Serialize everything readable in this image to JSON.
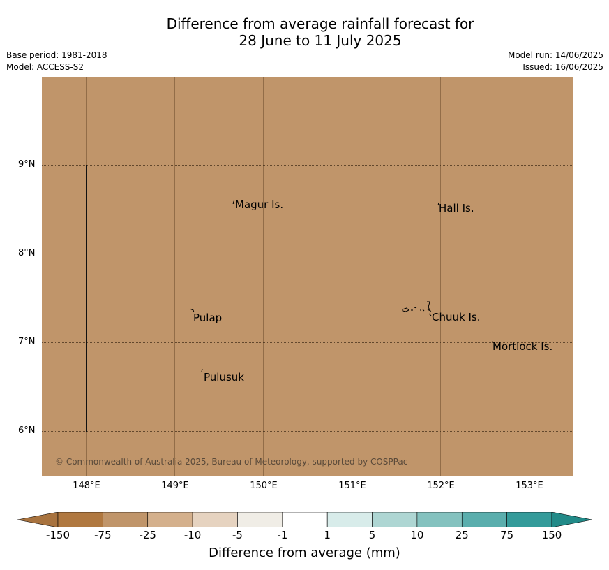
{
  "title_line1": "Difference from average rainfall forecast for",
  "title_line2": "28 June to 11 July 2025",
  "meta_left": {
    "base_period": "Base period: 1981-2018",
    "model": "Model: ACCESS-S2"
  },
  "meta_right": {
    "model_run": "Model run: 14/06/2025",
    "issued": "Issued: 16/06/2025"
  },
  "map": {
    "background_color": "#c0956a",
    "lat_labels": [
      "9°N",
      "8°N",
      "7°N",
      "6°N"
    ],
    "lon_labels": [
      "148°E",
      "149°E",
      "150°E",
      "151°E",
      "152°E",
      "153°E"
    ],
    "places": [
      "Magur Is.",
      "Hall Is.",
      "Pulap",
      "Chuuk Is.",
      "Mortlock Is.",
      "Pulusuk"
    ],
    "copyright": "© Commonwealth of Australia 2025, Bureau of Meteorology, supported by COSPPac"
  },
  "colorbar": {
    "labels": [
      "-150",
      "-75",
      "-25",
      "-10",
      "-5",
      "-1",
      "1",
      "5",
      "10",
      "25",
      "75",
      "150"
    ],
    "colors": [
      "#a8733f",
      "#b07840",
      "#c0956a",
      "#d4b08c",
      "#e6d3c0",
      "#f0ede6",
      "#ffffff",
      "#d8ecea",
      "#aed6d3",
      "#84c2bf",
      "#5aaead",
      "#349b9a",
      "#228a88"
    ],
    "title": "Difference from average (mm)"
  }
}
